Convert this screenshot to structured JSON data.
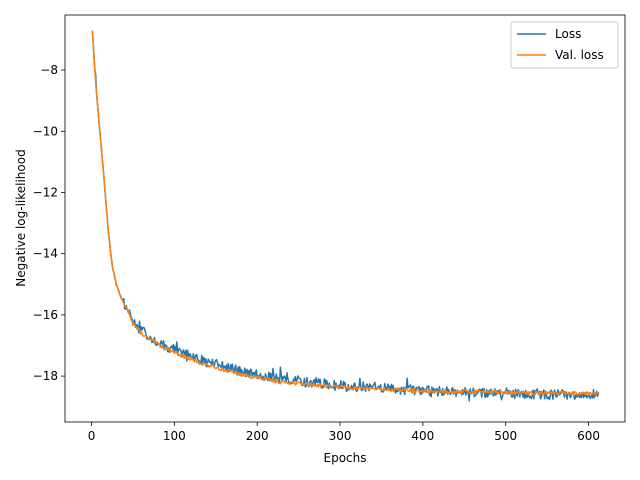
{
  "chart_data": {
    "type": "line",
    "title": "",
    "xlabel": "Epochs",
    "ylabel": "Negative log-likelihood",
    "xlim": [
      -32,
      644
    ],
    "ylim": [
      -19.5,
      -6.2
    ],
    "xticks": [
      0,
      100,
      200,
      300,
      400,
      500,
      600
    ],
    "yticks": [
      -18,
      -16,
      -14,
      -12,
      -10,
      -8
    ],
    "grid": false,
    "legend": {
      "placement": "top-right"
    },
    "series": [
      {
        "name": "Loss",
        "color": "#1f77b4",
        "x": [
          1,
          5,
          10,
          15,
          20,
          25,
          30,
          35,
          40,
          45,
          50,
          55,
          60,
          70,
          80,
          90,
          100,
          110,
          120,
          130,
          140,
          150,
          160,
          170,
          180,
          190,
          200,
          210,
          220,
          230,
          240,
          250,
          260,
          270,
          280,
          290,
          300,
          320,
          340,
          360,
          380,
          400,
          420,
          440,
          460,
          480,
          500,
          520,
          540,
          560,
          580,
          600,
          612
        ],
        "y": [
          -6.7,
          -8.4,
          -10.0,
          -11.5,
          -13.2,
          -14.4,
          -15.0,
          -15.4,
          -15.7,
          -15.9,
          -16.2,
          -16.4,
          -16.5,
          -16.7,
          -16.9,
          -17.0,
          -17.1,
          -17.25,
          -17.35,
          -17.45,
          -17.55,
          -17.6,
          -17.7,
          -17.75,
          -17.85,
          -17.9,
          -17.95,
          -18.0,
          -18.05,
          -18.1,
          -18.15,
          -18.15,
          -18.2,
          -18.2,
          -18.25,
          -18.3,
          -18.3,
          -18.35,
          -18.35,
          -18.4,
          -18.45,
          -18.45,
          -18.5,
          -18.5,
          -18.55,
          -18.55,
          -18.55,
          -18.6,
          -18.6,
          -18.6,
          -18.65,
          -18.65,
          -18.55
        ],
        "noise": 0.16,
        "seed": 7
      },
      {
        "name": "Val. loss",
        "color": "#ff7f0e",
        "x": [
          1,
          5,
          10,
          15,
          20,
          25,
          30,
          35,
          40,
          45,
          50,
          55,
          60,
          70,
          80,
          90,
          100,
          110,
          120,
          130,
          140,
          150,
          160,
          170,
          180,
          190,
          200,
          210,
          220,
          230,
          240,
          250,
          260,
          270,
          280,
          290,
          300,
          320,
          340,
          360,
          380,
          400,
          420,
          440,
          460,
          480,
          500,
          520,
          540,
          560,
          580,
          600,
          612
        ],
        "y": [
          -6.7,
          -8.4,
          -10.0,
          -11.5,
          -13.2,
          -14.4,
          -15.0,
          -15.4,
          -15.7,
          -15.9,
          -16.25,
          -16.45,
          -16.6,
          -16.8,
          -16.95,
          -17.1,
          -17.2,
          -17.35,
          -17.45,
          -17.55,
          -17.65,
          -17.7,
          -17.8,
          -17.85,
          -17.95,
          -18.0,
          -18.05,
          -18.1,
          -18.15,
          -18.2,
          -18.2,
          -18.25,
          -18.25,
          -18.3,
          -18.3,
          -18.35,
          -18.35,
          -18.4,
          -18.4,
          -18.45,
          -18.45,
          -18.5,
          -18.5,
          -18.5,
          -18.5,
          -18.5,
          -18.55,
          -18.55,
          -18.55,
          -18.55,
          -18.55,
          -18.55,
          -18.55
        ],
        "noise": 0.06,
        "seed": 13
      }
    ]
  }
}
